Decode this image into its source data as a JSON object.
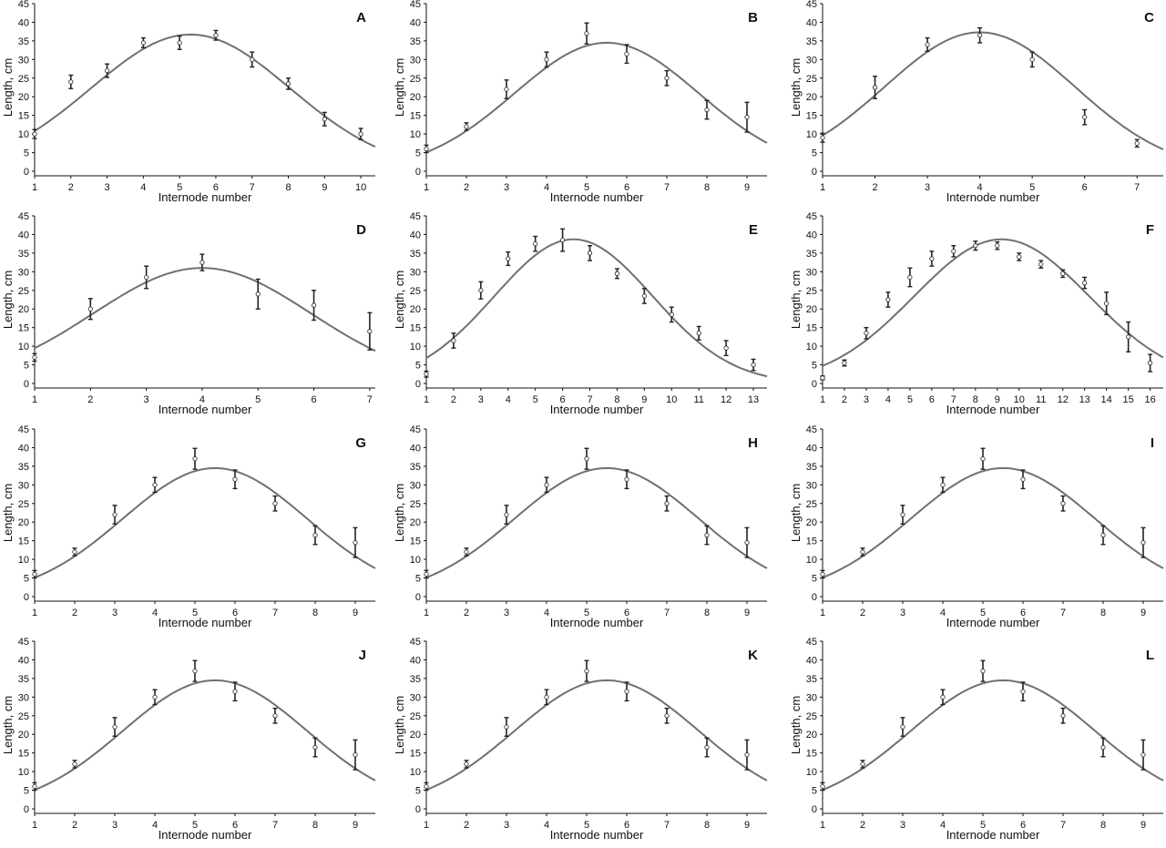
{
  "chart_data": [
    {
      "type": "scatter",
      "panel": "A",
      "title": "A",
      "xlabel": "Internode number",
      "ylabel": "Length, cm",
      "xticks": [
        1,
        2,
        3,
        4,
        5,
        6,
        7,
        8,
        9,
        10
      ],
      "xlim": [
        1,
        10.4
      ],
      "yticks": [
        0,
        5,
        10,
        15,
        20,
        25,
        30,
        35,
        40,
        45
      ],
      "ylim": [
        0,
        45
      ],
      "series": [
        {
          "x": [
            1,
            2,
            3,
            4,
            5,
            6,
            7,
            8,
            9,
            10
          ],
          "y": [
            10,
            24,
            27,
            34.5,
            34.5,
            36.5,
            30,
            23.5,
            14,
            10
          ],
          "err": [
            1.2,
            1.8,
            1.8,
            1.3,
            1.8,
            1.3,
            2,
            1.5,
            1.8,
            1.5
          ]
        }
      ],
      "fit": {
        "peak": 36.7,
        "center": 5.3,
        "width": 2.75
      }
    },
    {
      "type": "scatter",
      "panel": "B",
      "title": "B",
      "xlabel": "Internode number",
      "ylabel": "Length, cm",
      "xticks": [
        1,
        2,
        3,
        4,
        5,
        6,
        7,
        8,
        9
      ],
      "xlim": [
        1,
        9.5
      ],
      "yticks": [
        0,
        5,
        10,
        15,
        20,
        25,
        30,
        35,
        40,
        45
      ],
      "ylim": [
        0,
        45
      ],
      "series": [
        {
          "x": [
            1,
            2,
            3,
            4,
            5,
            6,
            7,
            8,
            9
          ],
          "y": [
            6,
            12,
            22,
            30,
            37,
            31.5,
            25,
            16.5,
            14.5
          ],
          "err": [
            1,
            1,
            2.5,
            2,
            2.8,
            2.5,
            2,
            2.5,
            4
          ]
        }
      ],
      "fit": {
        "peak": 34.5,
        "center": 5.5,
        "width": 2.3
      }
    },
    {
      "type": "scatter",
      "panel": "C",
      "title": "C",
      "xlabel": "Internode number",
      "ylabel": "Length, cm",
      "xticks": [
        1,
        2,
        3,
        4,
        5,
        6,
        7
      ],
      "xlim": [
        1,
        7.5
      ],
      "yticks": [
        0,
        5,
        10,
        15,
        20,
        25,
        30,
        35,
        40,
        45
      ],
      "ylim": [
        0,
        45
      ],
      "series": [
        {
          "x": [
            1,
            2,
            3,
            4,
            5,
            6,
            7
          ],
          "y": [
            9,
            22.5,
            34,
            36.5,
            30,
            14.5,
            7.5
          ],
          "err": [
            1.2,
            3,
            1.8,
            2,
            2,
            2,
            1
          ]
        }
      ],
      "fit": {
        "peak": 37.3,
        "center": 4.0,
        "width": 1.82
      }
    },
    {
      "type": "scatter",
      "panel": "D",
      "title": "D",
      "xlabel": "Internode number",
      "ylabel": "Length, cm",
      "xticks": [
        1,
        2,
        3,
        4,
        5,
        6,
        7
      ],
      "xlim": [
        1,
        7.1
      ],
      "yticks": [
        0,
        5,
        10,
        15,
        20,
        25,
        30,
        35,
        40,
        45
      ],
      "ylim": [
        0,
        45
      ],
      "series": [
        {
          "x": [
            1,
            2,
            3,
            4,
            5,
            6,
            7
          ],
          "y": [
            7,
            20,
            28.5,
            32.5,
            24,
            21,
            14
          ],
          "err": [
            1,
            2.8,
            3,
            2.2,
            4,
            4,
            5
          ]
        }
      ],
      "fit": {
        "peak": 31.0,
        "center": 4.0,
        "width": 1.95
      }
    },
    {
      "type": "scatter",
      "panel": "E",
      "title": "E",
      "xlabel": "Internode number",
      "ylabel": "Length, cm",
      "xticks": [
        1,
        2,
        3,
        4,
        5,
        6,
        7,
        8,
        9,
        10,
        11,
        12,
        13
      ],
      "xlim": [
        1,
        13.5
      ],
      "yticks": [
        0,
        5,
        10,
        15,
        20,
        25,
        30,
        35,
        40,
        45
      ],
      "ylim": [
        0,
        45
      ],
      "series": [
        {
          "x": [
            1,
            2,
            3,
            4,
            5,
            6,
            7,
            8,
            9,
            10,
            11,
            12,
            13
          ],
          "y": [
            2.5,
            11.5,
            25,
            33.5,
            37.5,
            38.5,
            35,
            29.5,
            23.5,
            18.5,
            13.5,
            9.5,
            5
          ],
          "err": [
            0.8,
            2,
            2.3,
            1.8,
            2,
            3,
            2,
            1.3,
            2,
            2,
            1.8,
            2,
            1.5
          ]
        }
      ],
      "fit": {
        "peak": 38.7,
        "center": 6.4,
        "width": 2.9
      }
    },
    {
      "type": "scatter",
      "panel": "F",
      "title": "F",
      "xlabel": "Internode number",
      "ylabel": "Length, cm",
      "xticks": [
        1,
        2,
        3,
        4,
        5,
        6,
        7,
        8,
        9,
        10,
        11,
        12,
        13,
        14,
        15,
        16
      ],
      "xlim": [
        1,
        16.6
      ],
      "yticks": [
        0,
        5,
        10,
        15,
        20,
        25,
        30,
        35,
        40,
        45
      ],
      "ylim": [
        0,
        45
      ],
      "series": [
        {
          "x": [
            1,
            2,
            3,
            4,
            5,
            6,
            7,
            8,
            9,
            10,
            11,
            12,
            13,
            14,
            15,
            16
          ],
          "y": [
            1.5,
            5.5,
            13.5,
            22.5,
            28.5,
            33.5,
            35.5,
            37,
            37,
            34,
            32,
            29.5,
            27,
            21.5,
            12.5,
            5.5
          ],
          "err": [
            0.5,
            0.8,
            1.5,
            2,
            2.5,
            2,
            1.5,
            1.2,
            1,
            1,
            1,
            1,
            1.5,
            3,
            4,
            2.3
          ]
        }
      ],
      "fit": {
        "peak": 38.7,
        "center": 9.2,
        "width": 4.0
      }
    },
    {
      "type": "scatter",
      "panel": "G",
      "title": "G",
      "xlabel": "Internode number",
      "ylabel": "Length, cm",
      "xticks": [
        1,
        2,
        3,
        4,
        5,
        6,
        7,
        8,
        9
      ],
      "xlim": [
        1,
        9.5
      ],
      "yticks": [
        0,
        5,
        10,
        15,
        20,
        25,
        30,
        35,
        40,
        45
      ],
      "ylim": [
        0,
        45
      ],
      "series": [
        {
          "x": [
            1,
            2,
            3,
            4,
            5,
            6,
            7,
            8,
            9
          ],
          "y": [
            6,
            12,
            22,
            30,
            37,
            31.5,
            25,
            16.5,
            14.5
          ],
          "err": [
            1,
            1,
            2.5,
            2,
            2.8,
            2.5,
            2,
            2.5,
            4
          ]
        }
      ],
      "fit": {
        "peak": 34.5,
        "center": 5.5,
        "width": 2.3
      }
    },
    {
      "type": "scatter",
      "panel": "H",
      "title": "H",
      "xlabel": "Internode number",
      "ylabel": "Length, cm",
      "xticks": [
        1,
        2,
        3,
        4,
        5,
        6,
        7,
        8,
        9
      ],
      "xlim": [
        1,
        9.5
      ],
      "yticks": [
        0,
        5,
        10,
        15,
        20,
        25,
        30,
        35,
        40,
        45
      ],
      "ylim": [
        0,
        45
      ],
      "series": [
        {
          "x": [
            1,
            2,
            3,
            4,
            5,
            6,
            7,
            8,
            9
          ],
          "y": [
            6,
            12,
            22,
            30,
            37,
            31.5,
            25,
            16.5,
            14.5
          ],
          "err": [
            1,
            1,
            2.5,
            2,
            2.8,
            2.5,
            2,
            2.5,
            4
          ]
        }
      ],
      "fit": {
        "peak": 34.5,
        "center": 5.5,
        "width": 2.3
      }
    },
    {
      "type": "scatter",
      "panel": "I",
      "title": "I",
      "xlabel": "Internode number",
      "ylabel": "Length, cm",
      "xticks": [
        1,
        2,
        3,
        4,
        5,
        6,
        7,
        8,
        9
      ],
      "xlim": [
        1,
        9.5
      ],
      "yticks": [
        0,
        5,
        10,
        15,
        20,
        25,
        30,
        35,
        40,
        45
      ],
      "ylim": [
        0,
        45
      ],
      "series": [
        {
          "x": [
            1,
            2,
            3,
            4,
            5,
            6,
            7,
            8,
            9
          ],
          "y": [
            6,
            12,
            22,
            30,
            37,
            31.5,
            25,
            16.5,
            14.5
          ],
          "err": [
            1,
            1,
            2.5,
            2,
            2.8,
            2.5,
            2,
            2.5,
            4
          ]
        }
      ],
      "fit": {
        "peak": 34.5,
        "center": 5.5,
        "width": 2.3
      }
    },
    {
      "type": "scatter",
      "panel": "J",
      "title": "J",
      "xlabel": "Internode number",
      "ylabel": "Length, cm",
      "xticks": [
        1,
        2,
        3,
        4,
        5,
        6,
        7,
        8,
        9
      ],
      "xlim": [
        1,
        9.5
      ],
      "yticks": [
        0,
        5,
        10,
        15,
        20,
        25,
        30,
        35,
        40,
        45
      ],
      "ylim": [
        0,
        45
      ],
      "series": [
        {
          "x": [
            1,
            2,
            3,
            4,
            5,
            6,
            7,
            8,
            9
          ],
          "y": [
            6,
            12,
            22,
            30,
            37,
            31.5,
            25,
            16.5,
            14.5
          ],
          "err": [
            1,
            1,
            2.5,
            2,
            2.8,
            2.5,
            2,
            2.5,
            4
          ]
        }
      ],
      "fit": {
        "peak": 34.5,
        "center": 5.5,
        "width": 2.3
      }
    },
    {
      "type": "scatter",
      "panel": "K",
      "title": "K",
      "xlabel": "Internode number",
      "ylabel": "Length, cm",
      "xticks": [
        1,
        2,
        3,
        4,
        5,
        6,
        7,
        8,
        9
      ],
      "xlim": [
        1,
        9.5
      ],
      "yticks": [
        0,
        5,
        10,
        15,
        20,
        25,
        30,
        35,
        40,
        45
      ],
      "ylim": [
        0,
        45
      ],
      "series": [
        {
          "x": [
            1,
            2,
            3,
            4,
            5,
            6,
            7,
            8,
            9
          ],
          "y": [
            6,
            12,
            22,
            30,
            37,
            31.5,
            25,
            16.5,
            14.5
          ],
          "err": [
            1,
            1,
            2.5,
            2,
            2.8,
            2.5,
            2,
            2.5,
            4
          ]
        }
      ],
      "fit": {
        "peak": 34.5,
        "center": 5.5,
        "width": 2.3
      }
    },
    {
      "type": "scatter",
      "panel": "L",
      "title": "L",
      "xlabel": "Internode number",
      "ylabel": "Length, cm",
      "xticks": [
        1,
        2,
        3,
        4,
        5,
        6,
        7,
        8,
        9
      ],
      "xlim": [
        1,
        9.5
      ],
      "yticks": [
        0,
        5,
        10,
        15,
        20,
        25,
        30,
        35,
        40,
        45
      ],
      "ylim": [
        0,
        45
      ],
      "series": [
        {
          "x": [
            1,
            2,
            3,
            4,
            5,
            6,
            7,
            8,
            9
          ],
          "y": [
            6,
            12,
            22,
            30,
            37,
            31.5,
            25,
            16.5,
            14.5
          ],
          "err": [
            1,
            1,
            2.5,
            2,
            2.8,
            2.5,
            2,
            2.5,
            4
          ]
        }
      ],
      "fit": {
        "peak": 34.5,
        "center": 5.5,
        "width": 2.3
      }
    }
  ],
  "style": {
    "curve_color": "#707070",
    "axis_color": "#111111",
    "marker_color": "#222222",
    "background": "#ffffff"
  }
}
